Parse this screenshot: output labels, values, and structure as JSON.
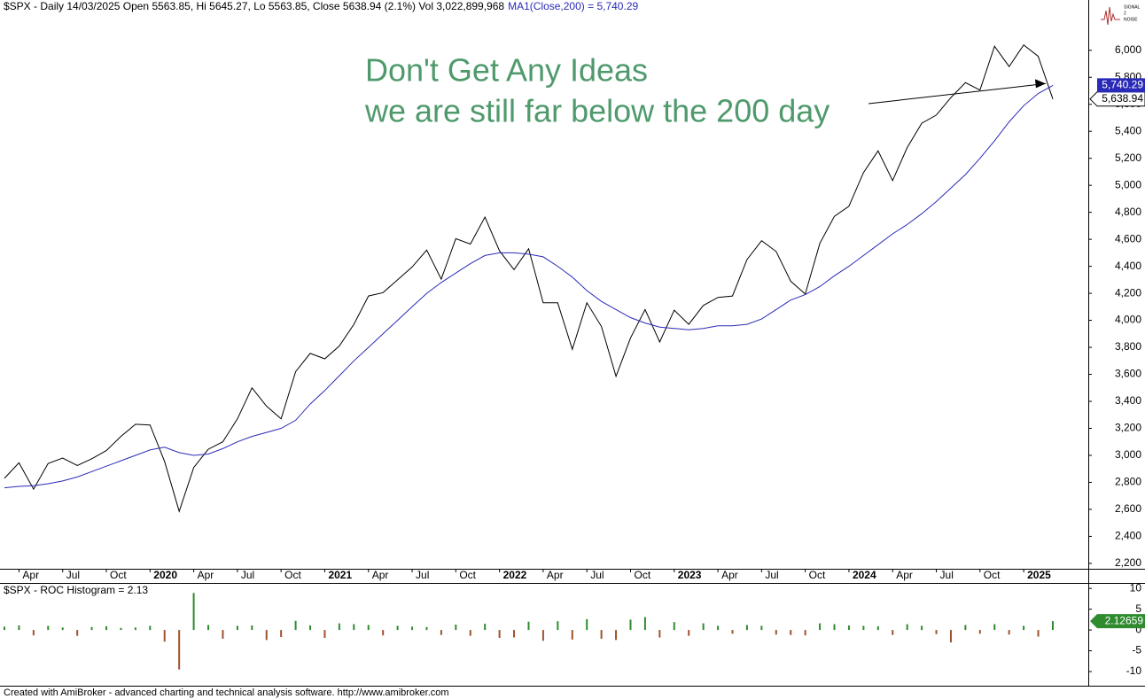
{
  "chart_data": [
    {
      "type": "line",
      "title": "$SPX - Daily 14/03/2025 Open 5563.85, Hi 5645.27, Lo 5563.85, Close 5638.94 (2.1%) Vol 3,022,899,968",
      "categories": [
        null,
        "Apr",
        null,
        null,
        "Jul",
        null,
        null,
        "Oct",
        null,
        null,
        "2020",
        null,
        null,
        "Apr",
        null,
        null,
        "Jul",
        null,
        null,
        "Oct",
        null,
        null,
        "2021",
        null,
        null,
        "Apr",
        null,
        null,
        "Jul",
        null,
        null,
        "Oct",
        null,
        null,
        "2022",
        null,
        null,
        "Apr",
        null,
        null,
        "Jul",
        null,
        null,
        "Oct",
        null,
        null,
        "2023",
        null,
        null,
        "Apr",
        null,
        null,
        "Jul",
        null,
        null,
        "Oct",
        null,
        null,
        "2024",
        null,
        null,
        "Apr",
        null,
        null,
        "Jul",
        null,
        null,
        "Oct",
        null,
        null,
        "2025",
        null,
        null
      ],
      "series": [
        {
          "color": "#000000",
          "tag": {
            "value": 5638.94,
            "label": "5,638.94"
          },
          "values": [
            2830,
            2945,
            2750,
            2940,
            2980,
            2925,
            2975,
            3035,
            3140,
            3230,
            3225,
            2955,
            2585,
            2910,
            3045,
            3100,
            3270,
            3500,
            3365,
            3270,
            3620,
            3755,
            3715,
            3810,
            3970,
            4180,
            4205,
            4300,
            4395,
            4520,
            4305,
            4605,
            4565,
            4765,
            4515,
            4375,
            4530,
            4130,
            4130,
            3785,
            4130,
            3955,
            3585,
            3870,
            4080,
            3840,
            4075,
            3970,
            4110,
            4170,
            4180,
            4450,
            4590,
            4510,
            4290,
            4195,
            4570,
            4770,
            4845,
            5095,
            5255,
            5035,
            5280,
            5460,
            5520,
            5650,
            5760,
            5705,
            6030,
            5880,
            6040,
            5955,
            5639
          ]
        },
        {
          "name": "MA1(Close,200) = 5,740.29",
          "color": "#2a2ab8",
          "tag": {
            "value": 5740.29,
            "label": "5,740.29"
          },
          "values": [
            2760,
            2770,
            2775,
            2790,
            2810,
            2840,
            2880,
            2920,
            2960,
            3000,
            3040,
            3060,
            3020,
            3000,
            3010,
            3050,
            3100,
            3140,
            3170,
            3200,
            3260,
            3380,
            3480,
            3590,
            3700,
            3800,
            3900,
            4000,
            4100,
            4200,
            4280,
            4350,
            4420,
            4480,
            4500,
            4500,
            4490,
            4470,
            4400,
            4320,
            4220,
            4140,
            4080,
            4020,
            3980,
            3950,
            3940,
            3930,
            3940,
            3960,
            3960,
            3970,
            4010,
            4080,
            4150,
            4190,
            4250,
            4330,
            4400,
            4480,
            4560,
            4640,
            4710,
            4790,
            4880,
            4980,
            5080,
            5200,
            5330,
            5470,
            5590,
            5680,
            5740
          ]
        }
      ],
      "ylim": [
        2160,
        6320
      ],
      "yticks": [
        {
          "value": 2200,
          "label": "2,200"
        },
        {
          "value": 2400,
          "label": "2,400"
        },
        {
          "value": 2600,
          "label": "2,600"
        },
        {
          "value": 2800,
          "label": "2,800"
        },
        {
          "value": 3000,
          "label": "3,000"
        },
        {
          "value": 3200,
          "label": "3,200"
        },
        {
          "value": 3400,
          "label": "3,400"
        },
        {
          "value": 3600,
          "label": "3,600"
        },
        {
          "value": 3800,
          "label": "3,800"
        },
        {
          "value": 4000,
          "label": "4,000"
        },
        {
          "value": 4200,
          "label": "4,200"
        },
        {
          "value": 4400,
          "label": "4,400"
        },
        {
          "value": 4600,
          "label": "4,600"
        },
        {
          "value": 4800,
          "label": "4,800"
        },
        {
          "value": 5000,
          "label": "5,000"
        },
        {
          "value": 5200,
          "label": "5,200"
        },
        {
          "value": 5400,
          "label": "5,400"
        },
        {
          "value": 5600,
          "label": "5,600"
        },
        {
          "value": 5800,
          "label": "5,800"
        },
        {
          "value": 6000,
          "label": "6,000"
        }
      ],
      "annotations": [
        "Don't Get Any Ideas",
        "we are still far below the 200 day"
      ]
    },
    {
      "type": "histogram_bar",
      "title": "$SPX - ROC Histogram = 2.13",
      "tag": 2.12659,
      "positive_color": "#2e8b2e",
      "negative_color": "#a0522d",
      "values": [
        0.8,
        1.1,
        -1.3,
        1.0,
        0.6,
        -1.4,
        0.7,
        0.9,
        0.5,
        0.6,
        1.0,
        -2.8,
        -9.5,
        8.9,
        1.2,
        -2.1,
        1.0,
        1.1,
        -2.4,
        -1.7,
        2.2,
        1.1,
        -1.9,
        1.6,
        1.4,
        1.2,
        -1.3,
        1.0,
        0.8,
        0.7,
        -1.2,
        1.3,
        -1.4,
        1.5,
        -1.9,
        -1.8,
        2.0,
        -2.6,
        2.1,
        -2.3,
        2.6,
        -2.1,
        -2.4,
        2.5,
        3.1,
        -1.8,
        1.9,
        -1.4,
        1.6,
        1.0,
        -0.9,
        1.2,
        1.0,
        -1.1,
        -1.2,
        -1.3,
        1.6,
        1.4,
        1.1,
        1.0,
        0.9,
        -1.2,
        1.4,
        1.0,
        -1.0,
        -3.0,
        1.2,
        -0.9,
        1.4,
        -1.1,
        1.0,
        -1.6,
        2.13
      ],
      "ylim": [
        -13.4,
        11.1
      ],
      "yticks": [
        10,
        5,
        0,
        -5,
        -10
      ]
    }
  ],
  "logo": [
    "SIGNAL",
    "2",
    "NOISE"
  ],
  "footer": "Created with AmiBroker - advanced charting and technical analysis software. http://www.amibroker.com"
}
